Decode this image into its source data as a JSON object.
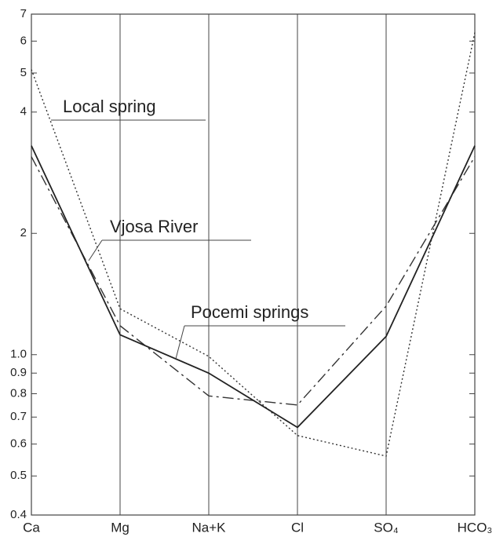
{
  "chart_data": {
    "type": "line",
    "categories": [
      "Ca",
      "Mg",
      "Na+K",
      "Cl",
      "SO₄",
      "HCO₃"
    ],
    "series": [
      {
        "name": "Local spring",
        "color": "#333333",
        "style": "dotted",
        "values": [
          5.1,
          1.3,
          0.99,
          0.63,
          0.56,
          6.3
        ]
      },
      {
        "name": "Vjosa River",
        "color": "#333333",
        "style": "dash-dot",
        "values": [
          3.1,
          1.18,
          0.79,
          0.75,
          1.32,
          3.1
        ]
      },
      {
        "name": "Pocemi springs",
        "color": "#222222",
        "style": "solid",
        "values": [
          3.3,
          1.12,
          0.9,
          0.66,
          1.11,
          3.3
        ]
      }
    ],
    "ylim": [
      0.4,
      7
    ],
    "yticks": [
      0.4,
      0.5,
      0.6,
      0.7,
      0.8,
      0.9,
      {
        "value": 1,
        "label": "1.0"
      },
      2,
      4,
      5,
      6,
      7
    ],
    "log_y": true,
    "grid": true
  }
}
